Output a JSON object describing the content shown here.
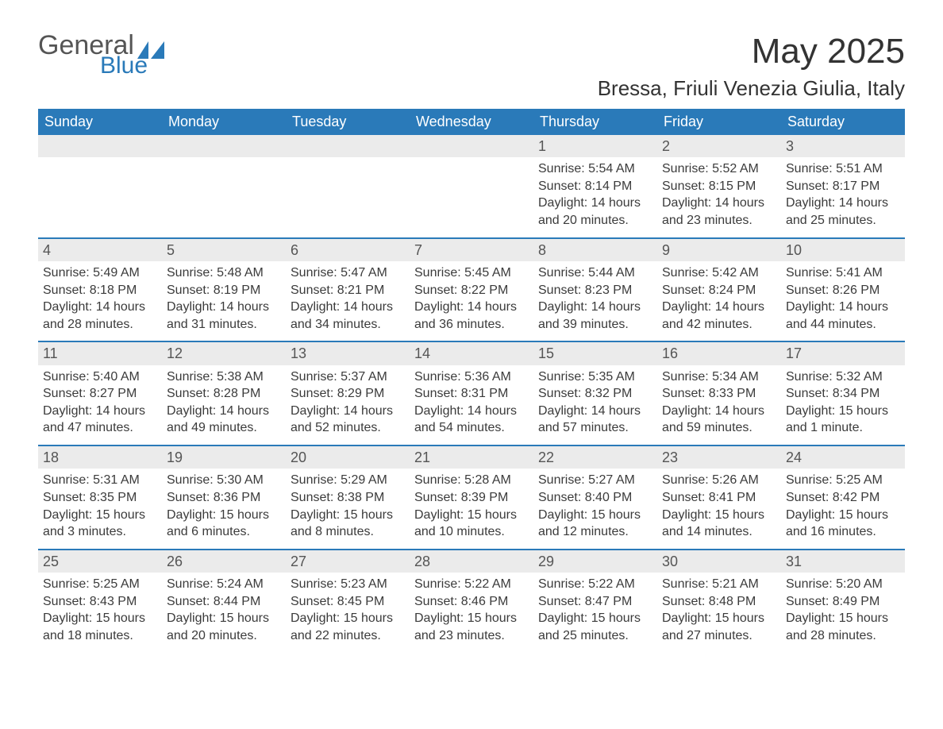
{
  "logo": {
    "general": "General",
    "blue": "Blue",
    "sail_color": "#2a7ab9"
  },
  "title": "May 2025",
  "location": "Bressa, Friuli Venezia Giulia, Italy",
  "colors": {
    "header_bg": "#2a7ab9",
    "header_text": "#ffffff",
    "datelabel_bg": "#ebebeb",
    "text": "#3b3b3b",
    "week_border": "#2a7ab9",
    "background": "#ffffff"
  },
  "typography": {
    "title_fontsize": 44,
    "location_fontsize": 26,
    "header_fontsize": 18,
    "body_fontsize": 16
  },
  "day_headers": [
    "Sunday",
    "Monday",
    "Tuesday",
    "Wednesday",
    "Thursday",
    "Friday",
    "Saturday"
  ],
  "weeks": [
    [
      {
        "date": "",
        "sunrise": "",
        "sunset": "",
        "daylight": ""
      },
      {
        "date": "",
        "sunrise": "",
        "sunset": "",
        "daylight": ""
      },
      {
        "date": "",
        "sunrise": "",
        "sunset": "",
        "daylight": ""
      },
      {
        "date": "",
        "sunrise": "",
        "sunset": "",
        "daylight": ""
      },
      {
        "date": "1",
        "sunrise": "Sunrise: 5:54 AM",
        "sunset": "Sunset: 8:14 PM",
        "daylight": "Daylight: 14 hours and 20 minutes."
      },
      {
        "date": "2",
        "sunrise": "Sunrise: 5:52 AM",
        "sunset": "Sunset: 8:15 PM",
        "daylight": "Daylight: 14 hours and 23 minutes."
      },
      {
        "date": "3",
        "sunrise": "Sunrise: 5:51 AM",
        "sunset": "Sunset: 8:17 PM",
        "daylight": "Daylight: 14 hours and 25 minutes."
      }
    ],
    [
      {
        "date": "4",
        "sunrise": "Sunrise: 5:49 AM",
        "sunset": "Sunset: 8:18 PM",
        "daylight": "Daylight: 14 hours and 28 minutes."
      },
      {
        "date": "5",
        "sunrise": "Sunrise: 5:48 AM",
        "sunset": "Sunset: 8:19 PM",
        "daylight": "Daylight: 14 hours and 31 minutes."
      },
      {
        "date": "6",
        "sunrise": "Sunrise: 5:47 AM",
        "sunset": "Sunset: 8:21 PM",
        "daylight": "Daylight: 14 hours and 34 minutes."
      },
      {
        "date": "7",
        "sunrise": "Sunrise: 5:45 AM",
        "sunset": "Sunset: 8:22 PM",
        "daylight": "Daylight: 14 hours and 36 minutes."
      },
      {
        "date": "8",
        "sunrise": "Sunrise: 5:44 AM",
        "sunset": "Sunset: 8:23 PM",
        "daylight": "Daylight: 14 hours and 39 minutes."
      },
      {
        "date": "9",
        "sunrise": "Sunrise: 5:42 AM",
        "sunset": "Sunset: 8:24 PM",
        "daylight": "Daylight: 14 hours and 42 minutes."
      },
      {
        "date": "10",
        "sunrise": "Sunrise: 5:41 AM",
        "sunset": "Sunset: 8:26 PM",
        "daylight": "Daylight: 14 hours and 44 minutes."
      }
    ],
    [
      {
        "date": "11",
        "sunrise": "Sunrise: 5:40 AM",
        "sunset": "Sunset: 8:27 PM",
        "daylight": "Daylight: 14 hours and 47 minutes."
      },
      {
        "date": "12",
        "sunrise": "Sunrise: 5:38 AM",
        "sunset": "Sunset: 8:28 PM",
        "daylight": "Daylight: 14 hours and 49 minutes."
      },
      {
        "date": "13",
        "sunrise": "Sunrise: 5:37 AM",
        "sunset": "Sunset: 8:29 PM",
        "daylight": "Daylight: 14 hours and 52 minutes."
      },
      {
        "date": "14",
        "sunrise": "Sunrise: 5:36 AM",
        "sunset": "Sunset: 8:31 PM",
        "daylight": "Daylight: 14 hours and 54 minutes."
      },
      {
        "date": "15",
        "sunrise": "Sunrise: 5:35 AM",
        "sunset": "Sunset: 8:32 PM",
        "daylight": "Daylight: 14 hours and 57 minutes."
      },
      {
        "date": "16",
        "sunrise": "Sunrise: 5:34 AM",
        "sunset": "Sunset: 8:33 PM",
        "daylight": "Daylight: 14 hours and 59 minutes."
      },
      {
        "date": "17",
        "sunrise": "Sunrise: 5:32 AM",
        "sunset": "Sunset: 8:34 PM",
        "daylight": "Daylight: 15 hours and 1 minute."
      }
    ],
    [
      {
        "date": "18",
        "sunrise": "Sunrise: 5:31 AM",
        "sunset": "Sunset: 8:35 PM",
        "daylight": "Daylight: 15 hours and 3 minutes."
      },
      {
        "date": "19",
        "sunrise": "Sunrise: 5:30 AM",
        "sunset": "Sunset: 8:36 PM",
        "daylight": "Daylight: 15 hours and 6 minutes."
      },
      {
        "date": "20",
        "sunrise": "Sunrise: 5:29 AM",
        "sunset": "Sunset: 8:38 PM",
        "daylight": "Daylight: 15 hours and 8 minutes."
      },
      {
        "date": "21",
        "sunrise": "Sunrise: 5:28 AM",
        "sunset": "Sunset: 8:39 PM",
        "daylight": "Daylight: 15 hours and 10 minutes."
      },
      {
        "date": "22",
        "sunrise": "Sunrise: 5:27 AM",
        "sunset": "Sunset: 8:40 PM",
        "daylight": "Daylight: 15 hours and 12 minutes."
      },
      {
        "date": "23",
        "sunrise": "Sunrise: 5:26 AM",
        "sunset": "Sunset: 8:41 PM",
        "daylight": "Daylight: 15 hours and 14 minutes."
      },
      {
        "date": "24",
        "sunrise": "Sunrise: 5:25 AM",
        "sunset": "Sunset: 8:42 PM",
        "daylight": "Daylight: 15 hours and 16 minutes."
      }
    ],
    [
      {
        "date": "25",
        "sunrise": "Sunrise: 5:25 AM",
        "sunset": "Sunset: 8:43 PM",
        "daylight": "Daylight: 15 hours and 18 minutes."
      },
      {
        "date": "26",
        "sunrise": "Sunrise: 5:24 AM",
        "sunset": "Sunset: 8:44 PM",
        "daylight": "Daylight: 15 hours and 20 minutes."
      },
      {
        "date": "27",
        "sunrise": "Sunrise: 5:23 AM",
        "sunset": "Sunset: 8:45 PM",
        "daylight": "Daylight: 15 hours and 22 minutes."
      },
      {
        "date": "28",
        "sunrise": "Sunrise: 5:22 AM",
        "sunset": "Sunset: 8:46 PM",
        "daylight": "Daylight: 15 hours and 23 minutes."
      },
      {
        "date": "29",
        "sunrise": "Sunrise: 5:22 AM",
        "sunset": "Sunset: 8:47 PM",
        "daylight": "Daylight: 15 hours and 25 minutes."
      },
      {
        "date": "30",
        "sunrise": "Sunrise: 5:21 AM",
        "sunset": "Sunset: 8:48 PM",
        "daylight": "Daylight: 15 hours and 27 minutes."
      },
      {
        "date": "31",
        "sunrise": "Sunrise: 5:20 AM",
        "sunset": "Sunset: 8:49 PM",
        "daylight": "Daylight: 15 hours and 28 minutes."
      }
    ]
  ]
}
